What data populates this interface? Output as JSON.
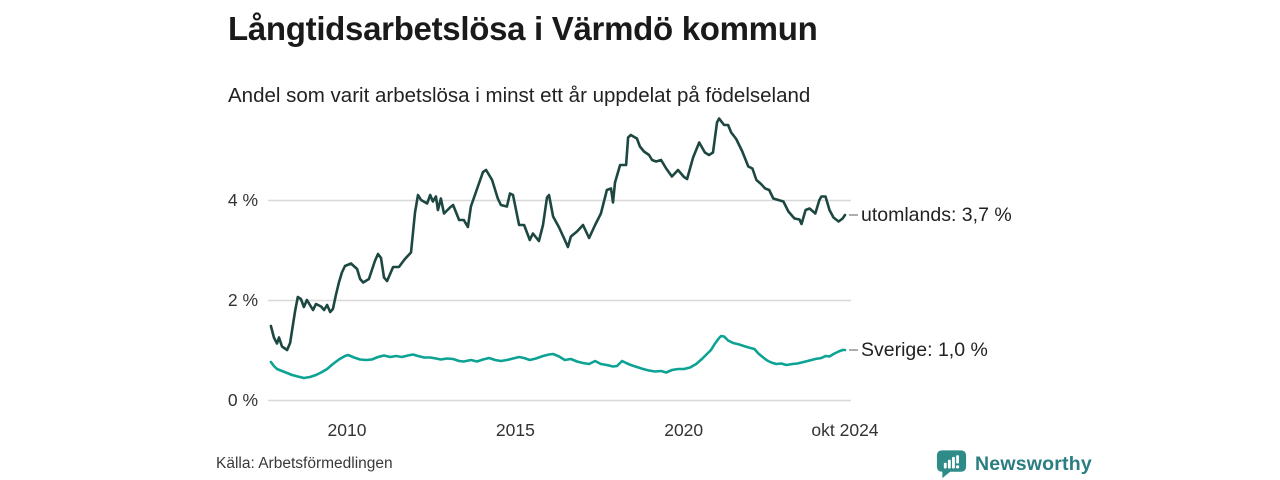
{
  "header": {
    "title": "Långtidsarbetslösa i Värmdö kommun",
    "subtitle": "Andel som varit arbetslösa i minst ett år uppdelat på födelseland"
  },
  "footer": {
    "source": "Källa: Arbetsförmedlingen",
    "brand": "Newsworthy"
  },
  "colors": {
    "utomlands_line": "#1d4741",
    "sverige_line": "#0da394",
    "gridline": "#d8d8d8",
    "end_tick": "#999999",
    "brand_teal": "#2a7d80",
    "logo_bubble": "#2e8b87"
  },
  "chart_data": {
    "type": "line",
    "title": "Långtidsarbetslösa i Värmdö kommun",
    "subtitle": "Andel som varit arbetslösa i minst ett år uppdelat på födelseland",
    "source": "Källa: Arbetsförmedlingen",
    "xlabel": "",
    "ylabel": "",
    "grid": "horizontal",
    "legend_position": "right-end-labels",
    "xlim": [
      2007.7,
      2024.8
    ],
    "ylim": [
      0,
      5.8
    ],
    "x_axis": {
      "ticks": [
        {
          "pos": 2010,
          "label": "2010"
        },
        {
          "pos": 2015,
          "label": "2015"
        },
        {
          "pos": 2020,
          "label": "2020"
        },
        {
          "pos": 2024.79,
          "label": "okt 2024"
        }
      ]
    },
    "y_axis": {
      "ticks": [
        {
          "pos": 0,
          "label": "0 %"
        },
        {
          "pos": 2,
          "label": "2 %"
        },
        {
          "pos": 4,
          "label": "4 %"
        }
      ]
    },
    "series": [
      {
        "name": "utomlands",
        "end_label": "utomlands: 3,7 %",
        "last_value": 3.7,
        "color": "#1d4741",
        "points": [
          [
            2007.74,
            1.48
          ],
          [
            2007.83,
            1.25
          ],
          [
            2007.92,
            1.13
          ],
          [
            2007.98,
            1.25
          ],
          [
            2008.07,
            1.07
          ],
          [
            2008.22,
            1.0
          ],
          [
            2008.31,
            1.14
          ],
          [
            2008.46,
            1.78
          ],
          [
            2008.54,
            2.06
          ],
          [
            2008.63,
            2.02
          ],
          [
            2008.72,
            1.86
          ],
          [
            2008.81,
            2.0
          ],
          [
            2008.99,
            1.8
          ],
          [
            2009.08,
            1.92
          ],
          [
            2009.23,
            1.87
          ],
          [
            2009.32,
            1.8
          ],
          [
            2009.41,
            1.9
          ],
          [
            2009.5,
            1.76
          ],
          [
            2009.58,
            1.82
          ],
          [
            2009.67,
            2.1
          ],
          [
            2009.76,
            2.35
          ],
          [
            2009.85,
            2.55
          ],
          [
            2009.94,
            2.68
          ],
          [
            2010.12,
            2.73
          ],
          [
            2010.3,
            2.62
          ],
          [
            2010.39,
            2.42
          ],
          [
            2010.48,
            2.35
          ],
          [
            2010.65,
            2.42
          ],
          [
            2010.83,
            2.78
          ],
          [
            2010.92,
            2.92
          ],
          [
            2011.01,
            2.84
          ],
          [
            2011.1,
            2.45
          ],
          [
            2011.19,
            2.38
          ],
          [
            2011.37,
            2.66
          ],
          [
            2011.54,
            2.66
          ],
          [
            2011.72,
            2.82
          ],
          [
            2011.9,
            2.95
          ],
          [
            2012.02,
            3.75
          ],
          [
            2012.11,
            4.1
          ],
          [
            2012.2,
            4.0
          ],
          [
            2012.38,
            3.93
          ],
          [
            2012.47,
            4.1
          ],
          [
            2012.55,
            3.97
          ],
          [
            2012.64,
            4.07
          ],
          [
            2012.7,
            3.8
          ],
          [
            2012.79,
            4.03
          ],
          [
            2012.88,
            3.73
          ],
          [
            2013.06,
            3.85
          ],
          [
            2013.15,
            3.9
          ],
          [
            2013.33,
            3.6
          ],
          [
            2013.47,
            3.6
          ],
          [
            2013.59,
            3.46
          ],
          [
            2013.68,
            3.87
          ],
          [
            2013.86,
            4.22
          ],
          [
            2014.04,
            4.56
          ],
          [
            2014.13,
            4.6
          ],
          [
            2014.31,
            4.4
          ],
          [
            2014.48,
            4.03
          ],
          [
            2014.57,
            3.9
          ],
          [
            2014.75,
            3.87
          ],
          [
            2014.84,
            4.13
          ],
          [
            2014.93,
            4.1
          ],
          [
            2015.11,
            3.5
          ],
          [
            2015.26,
            3.5
          ],
          [
            2015.43,
            3.2
          ],
          [
            2015.52,
            3.33
          ],
          [
            2015.7,
            3.18
          ],
          [
            2015.82,
            3.5
          ],
          [
            2015.94,
            4.05
          ],
          [
            2016.0,
            4.1
          ],
          [
            2016.12,
            3.67
          ],
          [
            2016.3,
            3.45
          ],
          [
            2016.47,
            3.2
          ],
          [
            2016.56,
            3.06
          ],
          [
            2016.65,
            3.27
          ],
          [
            2016.83,
            3.37
          ],
          [
            2017.01,
            3.5
          ],
          [
            2017.19,
            3.24
          ],
          [
            2017.37,
            3.5
          ],
          [
            2017.54,
            3.73
          ],
          [
            2017.72,
            4.2
          ],
          [
            2017.84,
            4.23
          ],
          [
            2017.9,
            3.95
          ],
          [
            2017.96,
            4.35
          ],
          [
            2018.11,
            4.7
          ],
          [
            2018.29,
            4.7
          ],
          [
            2018.35,
            5.25
          ],
          [
            2018.43,
            5.3
          ],
          [
            2018.61,
            5.23
          ],
          [
            2018.7,
            5.07
          ],
          [
            2018.82,
            4.97
          ],
          [
            2018.97,
            4.9
          ],
          [
            2019.06,
            4.8
          ],
          [
            2019.18,
            4.77
          ],
          [
            2019.33,
            4.8
          ],
          [
            2019.48,
            4.63
          ],
          [
            2019.65,
            4.47
          ],
          [
            2019.83,
            4.6
          ],
          [
            2020.01,
            4.46
          ],
          [
            2020.1,
            4.42
          ],
          [
            2020.28,
            4.85
          ],
          [
            2020.46,
            5.15
          ],
          [
            2020.63,
            4.95
          ],
          [
            2020.75,
            4.9
          ],
          [
            2020.87,
            4.95
          ],
          [
            2020.99,
            5.55
          ],
          [
            2021.05,
            5.63
          ],
          [
            2021.2,
            5.5
          ],
          [
            2021.32,
            5.5
          ],
          [
            2021.41,
            5.35
          ],
          [
            2021.56,
            5.22
          ],
          [
            2021.74,
            4.97
          ],
          [
            2021.92,
            4.67
          ],
          [
            2022.04,
            4.63
          ],
          [
            2022.16,
            4.4
          ],
          [
            2022.28,
            4.33
          ],
          [
            2022.42,
            4.23
          ],
          [
            2022.54,
            4.2
          ],
          [
            2022.66,
            4.03
          ],
          [
            2022.81,
            4.0
          ],
          [
            2022.96,
            3.97
          ],
          [
            2023.11,
            3.77
          ],
          [
            2023.29,
            3.63
          ],
          [
            2023.44,
            3.61
          ],
          [
            2023.5,
            3.52
          ],
          [
            2023.62,
            3.8
          ],
          [
            2023.74,
            3.83
          ],
          [
            2023.91,
            3.73
          ],
          [
            2024.03,
            4.0
          ],
          [
            2024.09,
            4.07
          ],
          [
            2024.21,
            4.07
          ],
          [
            2024.33,
            3.8
          ],
          [
            2024.45,
            3.65
          ],
          [
            2024.6,
            3.57
          ],
          [
            2024.72,
            3.63
          ],
          [
            2024.79,
            3.7
          ]
        ]
      },
      {
        "name": "Sverige",
        "end_label": "Sverige: 1,0 %",
        "last_value": 1.0,
        "color": "#0da394",
        "points": [
          [
            2007.74,
            0.76
          ],
          [
            2007.83,
            0.68
          ],
          [
            2007.92,
            0.62
          ],
          [
            2008.07,
            0.58
          ],
          [
            2008.22,
            0.54
          ],
          [
            2008.37,
            0.5
          ],
          [
            2008.54,
            0.47
          ],
          [
            2008.72,
            0.44
          ],
          [
            2008.9,
            0.46
          ],
          [
            2009.08,
            0.5
          ],
          [
            2009.23,
            0.55
          ],
          [
            2009.41,
            0.62
          ],
          [
            2009.58,
            0.72
          ],
          [
            2009.76,
            0.81
          ],
          [
            2009.94,
            0.88
          ],
          [
            2010.03,
            0.9
          ],
          [
            2010.21,
            0.85
          ],
          [
            2010.39,
            0.81
          ],
          [
            2010.56,
            0.8
          ],
          [
            2010.74,
            0.81
          ],
          [
            2010.92,
            0.86
          ],
          [
            2011.1,
            0.89
          ],
          [
            2011.28,
            0.86
          ],
          [
            2011.46,
            0.88
          ],
          [
            2011.63,
            0.86
          ],
          [
            2011.81,
            0.89
          ],
          [
            2011.96,
            0.91
          ],
          [
            2012.11,
            0.88
          ],
          [
            2012.29,
            0.85
          ],
          [
            2012.47,
            0.85
          ],
          [
            2012.64,
            0.83
          ],
          [
            2012.79,
            0.81
          ],
          [
            2012.97,
            0.83
          ],
          [
            2013.15,
            0.82
          ],
          [
            2013.33,
            0.78
          ],
          [
            2013.47,
            0.77
          ],
          [
            2013.68,
            0.8
          ],
          [
            2013.86,
            0.77
          ],
          [
            2014.04,
            0.81
          ],
          [
            2014.22,
            0.84
          ],
          [
            2014.4,
            0.8
          ],
          [
            2014.57,
            0.78
          ],
          [
            2014.75,
            0.8
          ],
          [
            2014.93,
            0.83
          ],
          [
            2015.11,
            0.86
          ],
          [
            2015.26,
            0.84
          ],
          [
            2015.43,
            0.8
          ],
          [
            2015.61,
            0.83
          ],
          [
            2015.82,
            0.88
          ],
          [
            2016.0,
            0.91
          ],
          [
            2016.12,
            0.92
          ],
          [
            2016.3,
            0.87
          ],
          [
            2016.47,
            0.8
          ],
          [
            2016.65,
            0.82
          ],
          [
            2016.83,
            0.77
          ],
          [
            2017.01,
            0.74
          ],
          [
            2017.19,
            0.72
          ],
          [
            2017.37,
            0.78
          ],
          [
            2017.54,
            0.72
          ],
          [
            2017.72,
            0.7
          ],
          [
            2017.9,
            0.67
          ],
          [
            2018.02,
            0.68
          ],
          [
            2018.17,
            0.78
          ],
          [
            2018.29,
            0.74
          ],
          [
            2018.43,
            0.7
          ],
          [
            2018.61,
            0.66
          ],
          [
            2018.79,
            0.62
          ],
          [
            2018.97,
            0.59
          ],
          [
            2019.15,
            0.57
          ],
          [
            2019.33,
            0.58
          ],
          [
            2019.48,
            0.55
          ],
          [
            2019.65,
            0.6
          ],
          [
            2019.83,
            0.62
          ],
          [
            2020.01,
            0.62
          ],
          [
            2020.19,
            0.65
          ],
          [
            2020.37,
            0.72
          ],
          [
            2020.54,
            0.82
          ],
          [
            2020.69,
            0.92
          ],
          [
            2020.81,
            1.0
          ],
          [
            2020.93,
            1.13
          ],
          [
            2021.05,
            1.24
          ],
          [
            2021.11,
            1.28
          ],
          [
            2021.2,
            1.27
          ],
          [
            2021.32,
            1.19
          ],
          [
            2021.47,
            1.14
          ],
          [
            2021.65,
            1.11
          ],
          [
            2021.83,
            1.07
          ],
          [
            2021.98,
            1.04
          ],
          [
            2022.1,
            1.02
          ],
          [
            2022.22,
            0.93
          ],
          [
            2022.36,
            0.85
          ],
          [
            2022.48,
            0.79
          ],
          [
            2022.6,
            0.75
          ],
          [
            2022.75,
            0.72
          ],
          [
            2022.9,
            0.73
          ],
          [
            2023.05,
            0.7
          ],
          [
            2023.23,
            0.72
          ],
          [
            2023.38,
            0.73
          ],
          [
            2023.56,
            0.76
          ],
          [
            2023.74,
            0.79
          ],
          [
            2023.91,
            0.82
          ],
          [
            2024.09,
            0.84
          ],
          [
            2024.21,
            0.88
          ],
          [
            2024.33,
            0.87
          ],
          [
            2024.45,
            0.92
          ],
          [
            2024.6,
            0.97
          ],
          [
            2024.72,
            1.0
          ],
          [
            2024.79,
            1.0
          ]
        ]
      }
    ]
  }
}
